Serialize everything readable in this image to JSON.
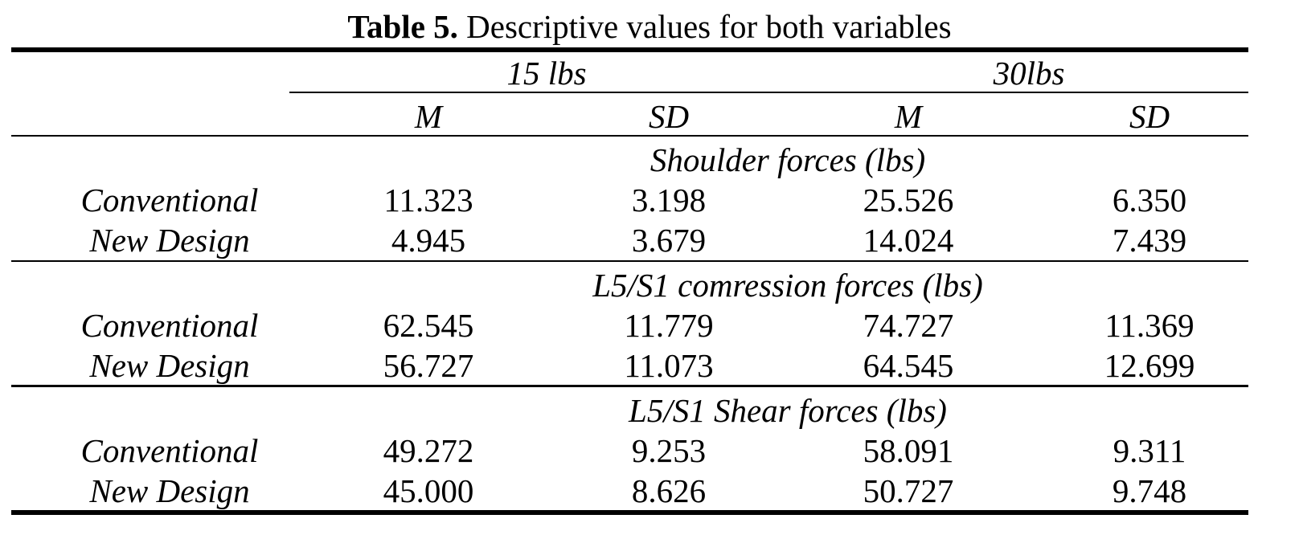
{
  "caption": {
    "label": "Table 5.",
    "text": "Descriptive values for both variables"
  },
  "header": {
    "groups": [
      "15 lbs",
      "30lbs"
    ],
    "stats": [
      "M",
      "SD",
      "M",
      "SD"
    ]
  },
  "sections": [
    {
      "title": "Shoulder forces (lbs)",
      "rows": [
        {
          "label": "Conventional",
          "values": [
            "11.323",
            "3.198",
            "25.526",
            "6.350"
          ]
        },
        {
          "label": "New Design",
          "values": [
            "4.945",
            "3.679",
            "14.024",
            "7.439"
          ]
        }
      ]
    },
    {
      "title": "L5/S1 comression forces (lbs)",
      "rows": [
        {
          "label": "Conventional",
          "values": [
            "62.545",
            "11.779",
            "74.727",
            "11.369"
          ]
        },
        {
          "label": "New Design",
          "values": [
            "56.727",
            "11.073",
            "64.545",
            "12.699"
          ]
        }
      ]
    },
    {
      "title": "L5/S1 Shear forces (lbs)",
      "rows": [
        {
          "label": "Conventional",
          "values": [
            "49.272",
            "9.253",
            "58.091",
            "9.311"
          ]
        },
        {
          "label": "New Design",
          "values": [
            "45.000",
            "8.626",
            "50.727",
            "9.748"
          ]
        }
      ]
    }
  ]
}
